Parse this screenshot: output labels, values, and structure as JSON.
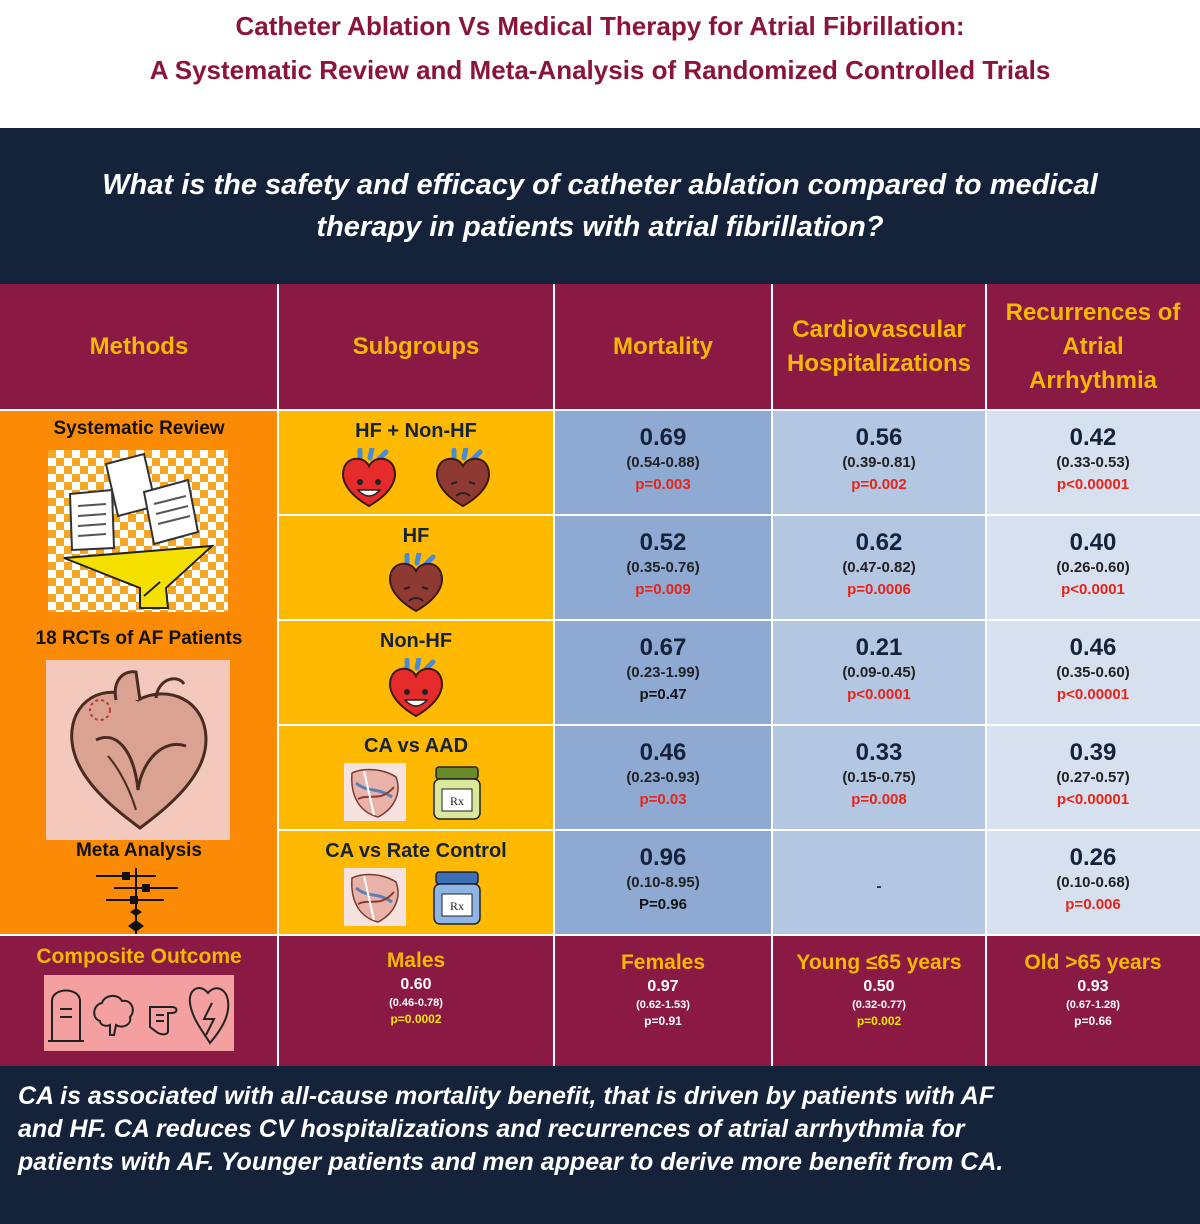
{
  "title": {
    "line1": "Catheter Ablation Vs Medical Therapy for Atrial Fibrillation:",
    "line2": "A Systematic Review and Meta-Analysis of Randomized Controlled Trials"
  },
  "question": {
    "line1": "What is the safety and efficacy of catheter ablation compared to medical",
    "line2": "therapy in patients with atrial fibrillation?"
  },
  "headers": {
    "methods": "Methods",
    "subgroups": "Subgroups",
    "mortality": "Mortality",
    "cv_hosp_1": "Cardiovascular",
    "cv_hosp_2": "Hospitalizations",
    "rec_1": "Recurrences of",
    "rec_2": "Atrial",
    "rec_3": "Arrhythmia"
  },
  "methods": {
    "systematic_review": "Systematic Review",
    "rcts": "18 RCTs of AF Patients",
    "meta_analysis": "Meta Analysis"
  },
  "rows": [
    {
      "subgroup": "HF + Non-HF",
      "mortality": {
        "value": "0.69",
        "ci": "(0.54-0.88)",
        "p": "p=0.003"
      },
      "cv": {
        "value": "0.56",
        "ci": "(0.39-0.81)",
        "p": "p=0.002"
      },
      "rec": {
        "value": "0.42",
        "ci": "(0.33-0.53)",
        "p": "p<0.00001"
      }
    },
    {
      "subgroup": "HF",
      "mortality": {
        "value": "0.52",
        "ci": "(0.35-0.76)",
        "p": "p=0.009"
      },
      "cv": {
        "value": "0.62",
        "ci": "(0.47-0.82)",
        "p": "p=0.0006"
      },
      "rec": {
        "value": "0.40",
        "ci": "(0.26-0.60)",
        "p": "p<0.0001"
      }
    },
    {
      "subgroup": "Non-HF",
      "mortality": {
        "value": "0.67",
        "ci": "(0.23-1.99)",
        "p": "p=0.47"
      },
      "cv": {
        "value": "0.21",
        "ci": "(0.09-0.45)",
        "p": "p<0.0001"
      },
      "rec": {
        "value": "0.46",
        "ci": "(0.35-0.60)",
        "p": "p<0.00001"
      }
    },
    {
      "subgroup": "CA vs AAD",
      "mortality": {
        "value": "0.46",
        "ci": "(0.23-0.93)",
        "p": "p=0.03"
      },
      "cv": {
        "value": "0.33",
        "ci": "(0.15-0.75)",
        "p": "p=0.008"
      },
      "rec": {
        "value": "0.39",
        "ci": "(0.27-0.57)",
        "p": "p<0.00001"
      }
    },
    {
      "subgroup": "CA vs Rate Control",
      "mortality": {
        "value": "0.96",
        "ci": "(0.10-8.95)",
        "p": "P=0.96"
      },
      "cv": {
        "dash": "-"
      },
      "rec": {
        "value": "0.26",
        "ci": "(0.10-0.68)",
        "p": "p=0.006"
      }
    }
  ],
  "composite": {
    "label": "Composite Outcome",
    "males": {
      "label": "Males",
      "value": "0.60",
      "ci": "(0.46-0.78)",
      "p": "p=0.0002"
    },
    "females": {
      "label": "Females",
      "value": "0.97",
      "ci": "(0.62-1.53)",
      "p": "p=0.91"
    },
    "young": {
      "label": "Young ≤65 years",
      "value": "0.50",
      "ci": "(0.32-0.77)",
      "p": "p=0.002"
    },
    "old": {
      "label": "Old >65 years",
      "value": "0.93",
      "ci": "(0.67-1.28)",
      "p": "p=0.66"
    }
  },
  "footer": {
    "line1": "CA is associated with all-cause mortality benefit, that is driven by patients with AF",
    "line2": "and HF. CA reduces CV hospitalizations and recurrences of atrial arrhythmia for",
    "line3": "patients with AF. Younger patients and men appear to derive more benefit from CA."
  },
  "icons": {
    "happy_heart": "happy-heart-icon",
    "sad_heart": "sad-heart-icon",
    "ablation": "catheter-ablation-icon",
    "aad_jar": "antiarrhythmic-drug-jar-icon",
    "rate_jar": "rate-control-drug-jar-icon"
  },
  "colors": {
    "title": "#8a1538",
    "navy": "#14223a",
    "maroon": "#8a1a43",
    "gold": "#f5b800",
    "orange": "#fb8b04",
    "yellow": "#ffb900",
    "mort_bg": "#8eaad3",
    "cv_bg": "#b4c7e2",
    "rec_bg": "#d6e0ee",
    "red": "#e8231a"
  }
}
